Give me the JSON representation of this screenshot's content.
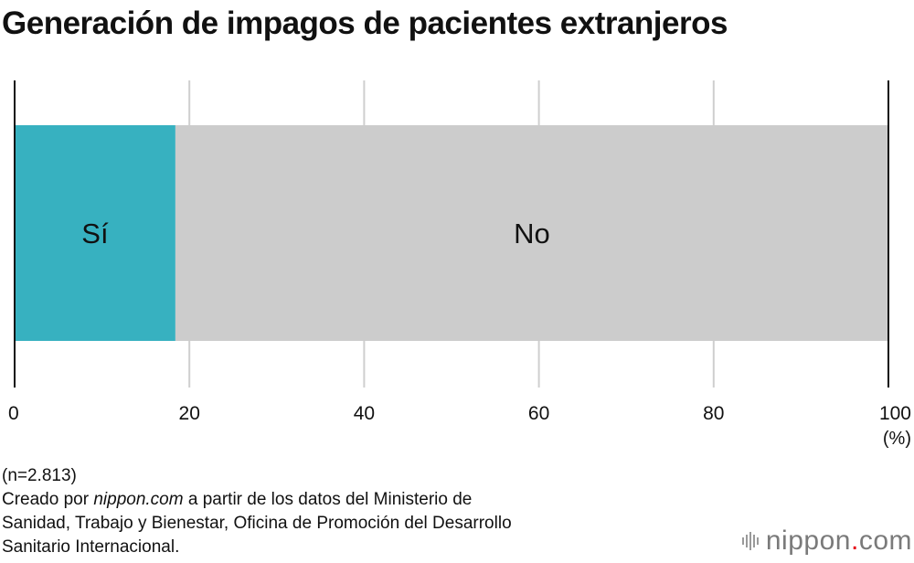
{
  "title": "Generación de impagos de pacientes extranjeros",
  "unit": "(%)",
  "notes": {
    "sample": "(n=2.813)",
    "source_prefix": "Creado por ",
    "source_site": "nippon.com",
    "source_rest": " a partir de los datos del Ministerio de",
    "source_line2": "Sanidad, Trabajo y Bienestar, Oficina de Promoción del Desarrollo",
    "source_line3": "Sanitario Internacional."
  },
  "logo": {
    "name": "nippon",
    "dot": ".",
    "tld": "com",
    "mark_icon": "nippon-bars-icon"
  },
  "colors": {
    "si": "#37b1c0",
    "no": "#cccccc",
    "grid": "#cfcfcf",
    "axis": "#111111"
  },
  "chart_data": {
    "type": "bar",
    "orientation": "horizontal-stacked-100",
    "categories": [
      ""
    ],
    "series": [
      {
        "name": "Sí",
        "values": [
          18.4
        ]
      },
      {
        "name": "No",
        "values": [
          81.6
        ]
      }
    ],
    "xlim": [
      0,
      100
    ],
    "xticks": [
      "0",
      "20",
      "40",
      "60",
      "80",
      "100"
    ],
    "xlabel": "(%)",
    "grid": true,
    "legend": "inside-bars"
  }
}
